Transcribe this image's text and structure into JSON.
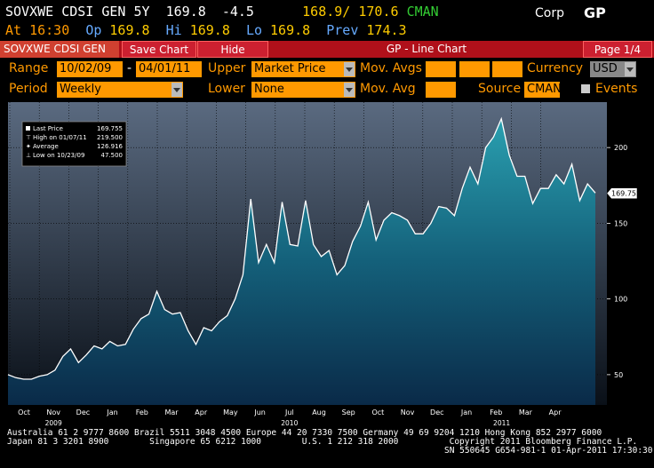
{
  "header": {
    "ticker": "SOVXWE CDSI GEN 5Y",
    "price": "169.8",
    "change": "-4.5",
    "bid_ask": "168.9/ 170.6",
    "source": "CMAN",
    "market": "Corp",
    "function": "GP"
  },
  "quote": {
    "at_label": "At",
    "at_value": "16:30",
    "op_label": "Op",
    "op_value": "169.8",
    "hi_label": "Hi",
    "hi_value": "169.8",
    "lo_label": "Lo",
    "lo_value": "169.8",
    "prev_label": "Prev",
    "prev_value": "174.3"
  },
  "menubar": {
    "security_tab": "SOVXWE CDSI GEN",
    "save_chart": "Save Chart",
    "hide": "Hide",
    "title": "GP - Line Chart",
    "page": "Page 1/4"
  },
  "controls": {
    "range_label": "Range",
    "range_start": "10/02/09",
    "range_sep": "-",
    "range_end": "04/01/11",
    "upper_label": "Upper",
    "upper_value": "Market Price",
    "mov_avgs_label": "Mov. Avgs",
    "currency_label": "Currency",
    "currency_value": "USD",
    "period_label": "Period",
    "period_value": "Weekly",
    "lower_label": "Lower",
    "lower_value": "None",
    "mov_avg_label": "Mov. Avg",
    "source_label": "Source",
    "source_value": "CMAN",
    "events_label": "Events"
  },
  "legend": {
    "last_price": "Last Price",
    "last_price_val": "169.755",
    "high": "High on 01/07/11",
    "high_val": "219.500",
    "average": "Average",
    "average_val": "126.916",
    "low": "Low on 10/23/09",
    "low_val": "47.500"
  },
  "last_tag": "169.755",
  "chart_data": {
    "type": "area",
    "ylim": [
      30,
      230
    ],
    "yticks": [
      50,
      100,
      150,
      200
    ],
    "months": [
      "Oct",
      "Nov",
      "Dec",
      "Jan",
      "Feb",
      "Mar",
      "Apr",
      "May",
      "Jun",
      "Jul",
      "Aug",
      "Sep",
      "Oct",
      "Nov",
      "Dec",
      "Jan",
      "Feb",
      "Mar",
      "Apr"
    ],
    "years": [
      "2009",
      "2010",
      "2011"
    ],
    "values": [
      50,
      48,
      47,
      47,
      49,
      50,
      53,
      62,
      67,
      58,
      63,
      69,
      67,
      72,
      69,
      70,
      80,
      87,
      90,
      105,
      93,
      90,
      91,
      79,
      70,
      81,
      79,
      85,
      89,
      100,
      116,
      166,
      124,
      136,
      124,
      164,
      136,
      135,
      165,
      136,
      128,
      132,
      116,
      122,
      138,
      148,
      164,
      139,
      152,
      157,
      155,
      152,
      143,
      143,
      150,
      161,
      160,
      155,
      173,
      187,
      176,
      200,
      207,
      219,
      195,
      181,
      181,
      163,
      173,
      173,
      182,
      176,
      189,
      165,
      176,
      170
    ]
  },
  "footer": {
    "line1": "Australia 61 2 9777 8600 Brazil 5511 3048 4500 Europe 44 20 7330 7500 Germany 49 69 9204 1210 Hong Kong 852 2977 6000",
    "line2": "Japan 81 3 3201 8900        Singapore 65 6212 1000        U.S. 1 212 318 2000          Copyright 2011 Bloomberg Finance L.P.",
    "line3": "SN 550645 G654-981-1 01-Apr-2011 17:30:30"
  }
}
